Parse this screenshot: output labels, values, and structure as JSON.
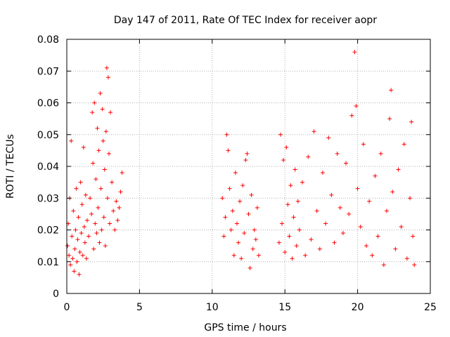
{
  "chart_data": {
    "type": "scatter",
    "title": "Day 147 of 2011, Rate Of TEC Index for receiver aopr",
    "xlabel": "GPS time / hours",
    "ylabel": "ROTI / TECUs",
    "xlim": [
      0,
      25
    ],
    "ylim": [
      0,
      0.08
    ],
    "xticks": [
      0,
      5,
      10,
      15,
      20,
      25
    ],
    "yticks": [
      0,
      0.01,
      0.02,
      0.03,
      0.04,
      0.05,
      0.06,
      0.07,
      0.08
    ],
    "xtick_labels": [
      "0",
      "5",
      "10",
      "15",
      "20",
      "25"
    ],
    "ytick_labels": [
      "0",
      "0.01",
      "0.02",
      "0.03",
      "0.04",
      "0.05",
      "0.06",
      "0.07",
      "0.08"
    ],
    "grid": true,
    "marker": "+",
    "color": "#ff0000",
    "series": [
      {
        "points": [
          [
            0.05,
            0.015
          ],
          [
            0.1,
            0.022
          ],
          [
            0.15,
            0.012
          ],
          [
            0.2,
            0.03
          ],
          [
            0.25,
            0.009
          ],
          [
            0.3,
            0.048
          ],
          [
            0.35,
            0.018
          ],
          [
            0.4,
            0.011
          ],
          [
            0.45,
            0.026
          ],
          [
            0.5,
            0.007
          ],
          [
            0.55,
            0.014
          ],
          [
            0.6,
            0.02
          ],
          [
            0.65,
            0.033
          ],
          [
            0.7,
            0.01
          ],
          [
            0.75,
            0.017
          ],
          [
            0.8,
            0.024
          ],
          [
            0.85,
            0.006
          ],
          [
            0.9,
            0.013
          ],
          [
            0.95,
            0.035
          ],
          [
            1.0,
            0.019
          ],
          [
            1.05,
            0.028
          ],
          [
            1.1,
            0.012
          ],
          [
            1.15,
            0.046
          ],
          [
            1.2,
            0.021
          ],
          [
            1.25,
            0.016
          ],
          [
            1.3,
            0.031
          ],
          [
            1.35,
            0.011
          ],
          [
            1.4,
            0.023
          ],
          [
            1.5,
            0.018
          ],
          [
            1.6,
            0.03
          ],
          [
            1.7,
            0.025
          ],
          [
            1.75,
            0.057
          ],
          [
            1.8,
            0.041
          ],
          [
            1.85,
            0.014
          ],
          [
            1.9,
            0.06
          ],
          [
            1.95,
            0.022
          ],
          [
            2.0,
            0.036
          ],
          [
            2.05,
            0.019
          ],
          [
            2.1,
            0.052
          ],
          [
            2.15,
            0.027
          ],
          [
            2.2,
            0.045
          ],
          [
            2.25,
            0.016
          ],
          [
            2.3,
            0.063
          ],
          [
            2.35,
            0.033
          ],
          [
            2.4,
            0.02
          ],
          [
            2.45,
            0.058
          ],
          [
            2.5,
            0.048
          ],
          [
            2.55,
            0.024
          ],
          [
            2.6,
            0.039
          ],
          [
            2.65,
            0.015
          ],
          [
            2.7,
            0.051
          ],
          [
            2.75,
            0.071
          ],
          [
            2.8,
            0.03
          ],
          [
            2.85,
            0.068
          ],
          [
            2.9,
            0.044
          ],
          [
            2.95,
            0.022
          ],
          [
            3.0,
            0.057
          ],
          [
            3.1,
            0.035
          ],
          [
            3.2,
            0.026
          ],
          [
            3.3,
            0.02
          ],
          [
            3.4,
            0.029
          ],
          [
            3.5,
            0.023
          ],
          [
            3.6,
            0.027
          ],
          [
            3.7,
            0.032
          ],
          [
            3.8,
            0.038
          ],
          [
            10.7,
            0.03
          ],
          [
            10.8,
            0.018
          ],
          [
            10.9,
            0.024
          ],
          [
            11.0,
            0.05
          ],
          [
            11.1,
            0.045
          ],
          [
            11.2,
            0.033
          ],
          [
            11.3,
            0.02
          ],
          [
            11.4,
            0.026
          ],
          [
            11.5,
            0.012
          ],
          [
            11.6,
            0.038
          ],
          [
            11.7,
            0.022
          ],
          [
            11.8,
            0.016
          ],
          [
            11.9,
            0.029
          ],
          [
            12.0,
            0.011
          ],
          [
            12.1,
            0.034
          ],
          [
            12.2,
            0.019
          ],
          [
            12.3,
            0.042
          ],
          [
            12.4,
            0.044
          ],
          [
            12.5,
            0.025
          ],
          [
            12.6,
            0.008
          ],
          [
            12.7,
            0.031
          ],
          [
            12.8,
            0.014
          ],
          [
            12.9,
            0.02
          ],
          [
            13.0,
            0.017
          ],
          [
            13.1,
            0.027
          ],
          [
            13.2,
            0.012
          ],
          [
            14.6,
            0.016
          ],
          [
            14.7,
            0.05
          ],
          [
            14.8,
            0.022
          ],
          [
            14.9,
            0.042
          ],
          [
            15.0,
            0.013
          ],
          [
            15.1,
            0.046
          ],
          [
            15.2,
            0.028
          ],
          [
            15.3,
            0.018
          ],
          [
            15.4,
            0.034
          ],
          [
            15.5,
            0.011
          ],
          [
            15.6,
            0.024
          ],
          [
            15.7,
            0.039
          ],
          [
            15.8,
            0.015
          ],
          [
            15.9,
            0.029
          ],
          [
            16.0,
            0.02
          ],
          [
            16.2,
            0.035
          ],
          [
            16.4,
            0.012
          ],
          [
            16.6,
            0.043
          ],
          [
            16.8,
            0.017
          ],
          [
            17.0,
            0.051
          ],
          [
            17.2,
            0.026
          ],
          [
            17.4,
            0.014
          ],
          [
            17.6,
            0.038
          ],
          [
            17.8,
            0.022
          ],
          [
            18.0,
            0.049
          ],
          [
            18.2,
            0.031
          ],
          [
            18.4,
            0.016
          ],
          [
            18.6,
            0.044
          ],
          [
            18.8,
            0.027
          ],
          [
            19.0,
            0.019
          ],
          [
            19.2,
            0.041
          ],
          [
            19.4,
            0.025
          ],
          [
            19.6,
            0.056
          ],
          [
            19.8,
            0.076
          ],
          [
            19.9,
            0.059
          ],
          [
            20.0,
            0.033
          ],
          [
            20.2,
            0.021
          ],
          [
            20.4,
            0.047
          ],
          [
            20.6,
            0.015
          ],
          [
            20.8,
            0.029
          ],
          [
            21.0,
            0.012
          ],
          [
            21.2,
            0.037
          ],
          [
            21.4,
            0.018
          ],
          [
            21.6,
            0.044
          ],
          [
            21.8,
            0.009
          ],
          [
            22.0,
            0.026
          ],
          [
            22.2,
            0.055
          ],
          [
            22.3,
            0.064
          ],
          [
            22.4,
            0.032
          ],
          [
            22.6,
            0.014
          ],
          [
            22.8,
            0.039
          ],
          [
            23.0,
            0.021
          ],
          [
            23.2,
            0.047
          ],
          [
            23.4,
            0.011
          ],
          [
            23.6,
            0.03
          ],
          [
            23.7,
            0.054
          ],
          [
            23.8,
            0.018
          ],
          [
            23.9,
            0.009
          ]
        ]
      }
    ]
  }
}
